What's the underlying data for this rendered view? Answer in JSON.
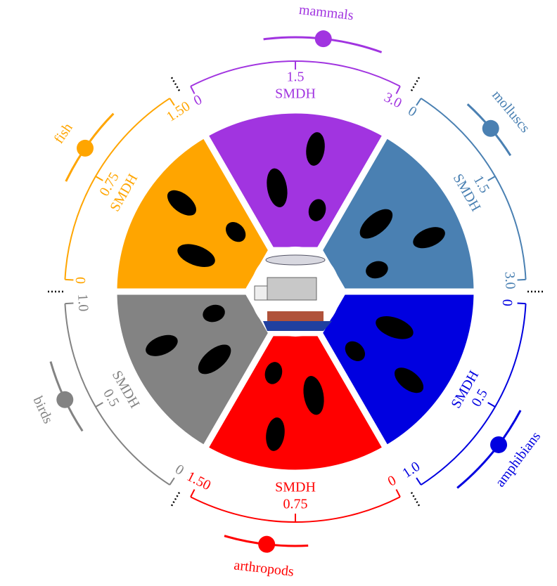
{
  "chart_data": {
    "type": "radial-gauge",
    "groups": [
      {
        "name": "mammals",
        "color": "#a134e0",
        "axis_label": "SMDH",
        "lim": [
          0,
          3
        ],
        "ticks": [
          0,
          1.5,
          {
            "value": 3,
            "label": "3.0"
          }
        ],
        "value": 1.85,
        "range": [
          1.1,
          2.6
        ]
      },
      {
        "name": "molluscs",
        "color": "#4a80b2",
        "axis_label": "SMDH",
        "lim": [
          0,
          3
        ],
        "ticks": [
          0,
          1.5,
          {
            "value": 3,
            "label": "3.0"
          }
        ],
        "value": 0.95,
        "range": [
          0.53,
          1.37
        ]
      },
      {
        "name": "amphibians",
        "color": "#0000e0",
        "axis_label": "SMDH",
        "lim": [
          0,
          1
        ],
        "ticks": [
          0,
          0.5,
          {
            "value": 1,
            "label": "1.0"
          }
        ],
        "value": 0.63,
        "range": [
          0.46,
          0.88
        ]
      },
      {
        "name": "arthropods",
        "color": "#ff0000",
        "axis_label": "SMDH",
        "lim": [
          0,
          1.5
        ],
        "ticks": [
          0,
          0.75,
          {
            "value": 1.5,
            "label": "1.50"
          }
        ],
        "value": 0.93,
        "range": [
          0.67,
          1.2
        ]
      },
      {
        "name": "birds",
        "color": "#838383",
        "axis_label": "SMDH",
        "lim": [
          0,
          1
        ],
        "ticks": [
          0,
          0.5,
          {
            "value": 1,
            "label": "1.0"
          }
        ],
        "value": 0.59,
        "range": [
          0.44,
          0.76
        ]
      },
      {
        "name": "fish",
        "color": "#ffa500",
        "axis_label": "SMDH",
        "lim": [
          0,
          1.5
        ],
        "ticks": [
          0,
          0.75,
          {
            "value": 1.5,
            "label": "1.50"
          }
        ],
        "value": 0.87,
        "range": [
          0.63,
          1.15
        ]
      }
    ]
  }
}
